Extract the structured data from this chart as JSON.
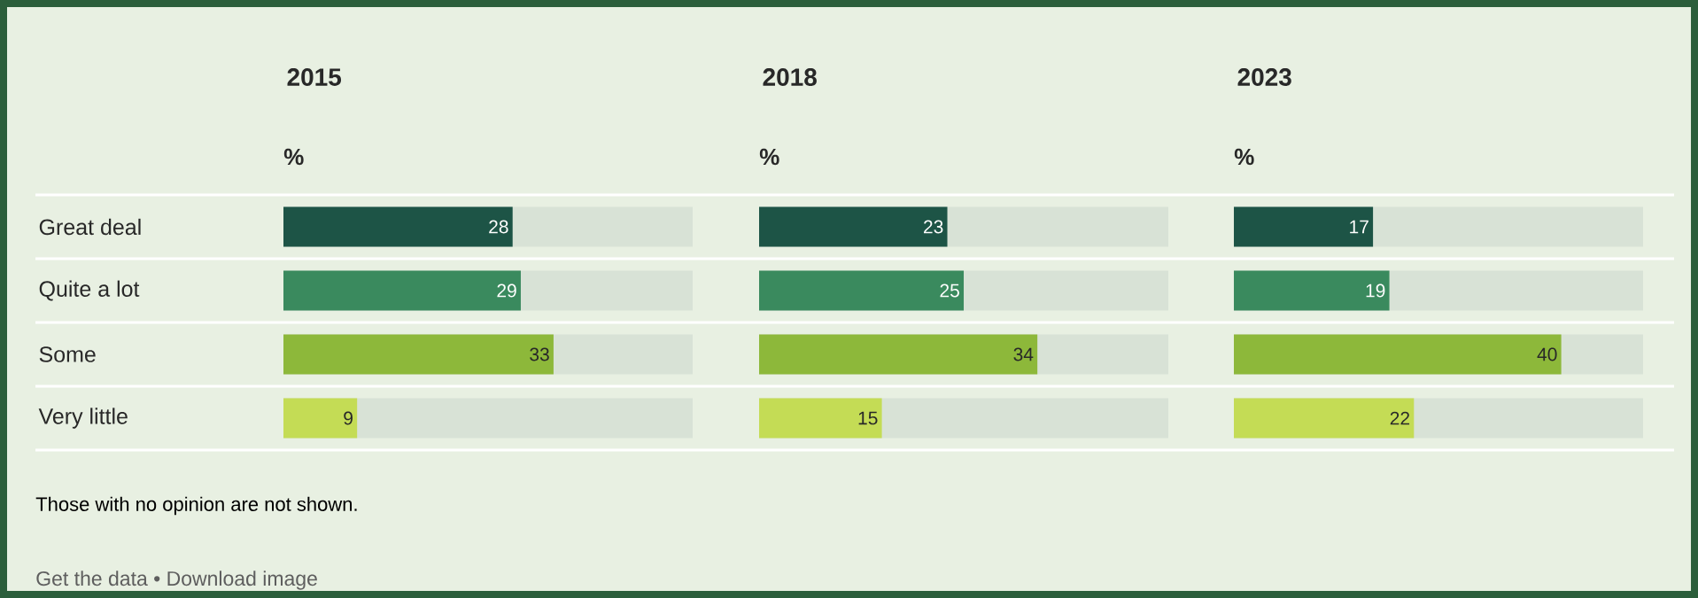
{
  "chart_data": [
    {
      "type": "bar",
      "orientation": "horizontal",
      "title": "2015",
      "subtitle": "%",
      "categories": [
        "Great deal",
        "Quite a lot",
        "Some",
        "Very little"
      ],
      "values": [
        28,
        29,
        33,
        9
      ],
      "colors": [
        "#1d5446",
        "#3a8a5e",
        "#8db83a",
        "#c4dc55"
      ],
      "xlim": [
        0,
        50
      ],
      "tick_labels": "y",
      "data_labels": true,
      "annotations": [
        "Those with no opinion are not shown.",
        "Get the data • Download image"
      ]
    },
    {
      "type": "bar",
      "orientation": "horizontal",
      "title": "2018",
      "subtitle": "%",
      "values": [
        23,
        25,
        34,
        15
      ],
      "colors": [
        "#1d5446",
        "#3a8a5e",
        "#8db83a",
        "#c4dc55"
      ],
      "xlim": [
        0,
        50
      ],
      "tick_labels": false,
      "data_labels": true
    },
    {
      "type": "bar",
      "orientation": "horizontal",
      "title": "2023",
      "subtitle": "%",
      "values": [
        17,
        19,
        40,
        22
      ],
      "colors": [
        "#1d5446",
        "#3a8a5e",
        "#8db83a",
        "#c4dc55"
      ],
      "xlim": [
        0,
        50
      ],
      "tick_labels": false,
      "data_labels": true
    }
  ]
}
